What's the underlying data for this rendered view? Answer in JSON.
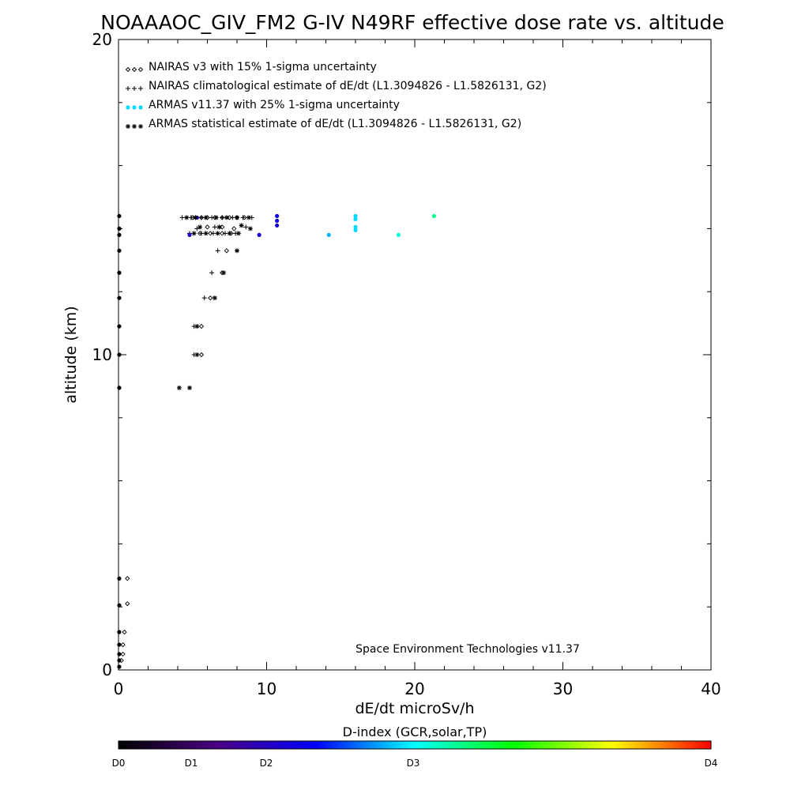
{
  "chart_data": {
    "type": "scatter",
    "title": "NOAAAOC_GIV_FM2 G-IV   N49RF  effective dose rate vs. altitude",
    "xlabel": "dE/dt microSv/h",
    "ylabel": "altitude (km)",
    "xlim": [
      0,
      40
    ],
    "ylim": [
      0,
      20
    ],
    "x_ticks": [
      "0",
      "10",
      "20",
      "30",
      "40"
    ],
    "y_ticks": [
      "0",
      "10",
      "20"
    ],
    "x_tick_values": [
      0,
      10,
      20,
      30,
      40
    ],
    "y_tick_values": [
      0,
      10,
      20
    ],
    "legend_position": "top-left",
    "grid": false,
    "annotation": "Space Environment Technologies v11.37",
    "series": [
      {
        "name": "NAIRAS v3 with 15% 1-sigma uncertainty",
        "marker": "diamond",
        "color": "#000000",
        "points": [
          [
            5.0,
            14.35
          ],
          [
            5.6,
            14.35
          ],
          [
            6.0,
            14.35
          ],
          [
            6.5,
            14.35
          ],
          [
            7.0,
            14.35
          ],
          [
            7.5,
            14.35
          ],
          [
            8.0,
            14.35
          ],
          [
            8.5,
            14.35
          ],
          [
            5.5,
            13.85
          ],
          [
            6.2,
            13.85
          ],
          [
            7.0,
            13.85
          ],
          [
            7.6,
            13.85
          ],
          [
            6.0,
            14.05
          ],
          [
            7.0,
            14.05
          ],
          [
            7.8,
            14.0
          ],
          [
            7.3,
            13.3
          ],
          [
            7.0,
            12.6
          ],
          [
            6.2,
            11.8
          ],
          [
            5.6,
            10.9
          ],
          [
            5.6,
            10.0
          ],
          [
            0.6,
            2.9
          ],
          [
            0.6,
            2.1
          ],
          [
            0.4,
            1.2
          ],
          [
            0.3,
            0.8
          ],
          [
            0.3,
            0.5
          ],
          [
            0.2,
            0.3
          ]
        ]
      },
      {
        "name": "NAIRAS climatological estimate of dE/dt (L1.3094826 - L1.5826131, G2)",
        "marker": "plus",
        "color": "#000000",
        "points": [
          [
            4.3,
            14.35
          ],
          [
            4.9,
            14.35
          ],
          [
            5.6,
            14.35
          ],
          [
            6.3,
            14.35
          ],
          [
            7.0,
            14.35
          ],
          [
            7.7,
            14.35
          ],
          [
            8.4,
            14.35
          ],
          [
            9.0,
            14.35
          ],
          [
            4.8,
            13.85
          ],
          [
            5.6,
            13.85
          ],
          [
            6.4,
            13.85
          ],
          [
            7.2,
            13.85
          ],
          [
            7.9,
            13.85
          ],
          [
            5.3,
            14.0
          ],
          [
            6.5,
            14.05
          ],
          [
            8.6,
            14.05
          ],
          [
            6.7,
            13.3
          ],
          [
            6.3,
            12.6
          ],
          [
            5.8,
            11.8
          ],
          [
            5.1,
            10.9
          ],
          [
            5.1,
            10.0
          ]
        ]
      },
      {
        "name": "ARMAS v11.37 with 25% 1-sigma uncertainty",
        "marker": "dot",
        "color": "#0033dd",
        "points": [
          [
            5.3,
            14.35,
            1.0
          ],
          [
            10.7,
            14.4,
            1.2
          ],
          [
            10.7,
            14.25,
            1.2
          ],
          [
            16.0,
            14.4,
            1.9
          ],
          [
            16.0,
            14.3,
            1.9
          ],
          [
            21.3,
            14.4,
            2.3
          ],
          [
            10.7,
            14.1,
            1.1
          ],
          [
            16.0,
            14.05,
            1.9
          ],
          [
            16.0,
            13.95,
            1.9
          ],
          [
            4.8,
            13.8,
            1.0
          ],
          [
            9.5,
            13.8,
            1.1
          ],
          [
            14.2,
            13.8,
            1.8
          ],
          [
            18.9,
            13.8,
            2.1
          ]
        ]
      },
      {
        "name": "ARMAS statistical estimate of dE/dt (L1.3094826 - L1.5826131, G2)",
        "marker": "asterisk",
        "color": "#000000",
        "points": [
          [
            4.6,
            14.35
          ],
          [
            5.2,
            14.35
          ],
          [
            5.9,
            14.35
          ],
          [
            6.6,
            14.35
          ],
          [
            7.3,
            14.35
          ],
          [
            8.0,
            14.35
          ],
          [
            8.8,
            14.35
          ],
          [
            5.1,
            13.85
          ],
          [
            5.9,
            13.85
          ],
          [
            6.7,
            13.85
          ],
          [
            7.5,
            13.85
          ],
          [
            8.1,
            13.85
          ],
          [
            5.5,
            14.05
          ],
          [
            6.8,
            14.05
          ],
          [
            8.3,
            14.1
          ],
          [
            8.9,
            14.0
          ],
          [
            8.0,
            13.3
          ],
          [
            7.1,
            12.6
          ],
          [
            6.5,
            11.8
          ],
          [
            5.3,
            10.9
          ],
          [
            5.3,
            10.0
          ],
          [
            4.1,
            8.95
          ],
          [
            4.8,
            8.95
          ]
        ]
      },
      {
        "name": "",
        "marker": "dot",
        "color": "#000000",
        "points": [
          [
            0.05,
            14.4
          ],
          [
            0.05,
            14.0
          ],
          [
            0.05,
            13.8
          ],
          [
            0.05,
            13.3
          ],
          [
            0.05,
            12.6
          ],
          [
            0.05,
            11.8
          ],
          [
            0.05,
            10.9
          ],
          [
            0.05,
            10.0
          ],
          [
            0.05,
            8.95
          ],
          [
            0.05,
            2.9
          ],
          [
            0.05,
            2.05
          ],
          [
            0.05,
            1.2
          ],
          [
            0.05,
            0.8
          ],
          [
            0.05,
            0.5
          ],
          [
            0.05,
            0.3
          ],
          [
            0.05,
            0.1
          ]
        ]
      }
    ],
    "colorbar": {
      "title": "D-index (GCR,solar,TP)",
      "range": [
        0,
        4
      ],
      "tick_labels": [
        "D0",
        "D1",
        "D2",
        "D3",
        "D4"
      ],
      "tick_values": [
        0,
        1,
        2,
        3,
        4
      ],
      "colors": [
        "#000000",
        "#4b0082",
        "#0000ff",
        "#00ffff",
        "#00ff00",
        "#ffff00",
        "#ff0000"
      ]
    }
  }
}
